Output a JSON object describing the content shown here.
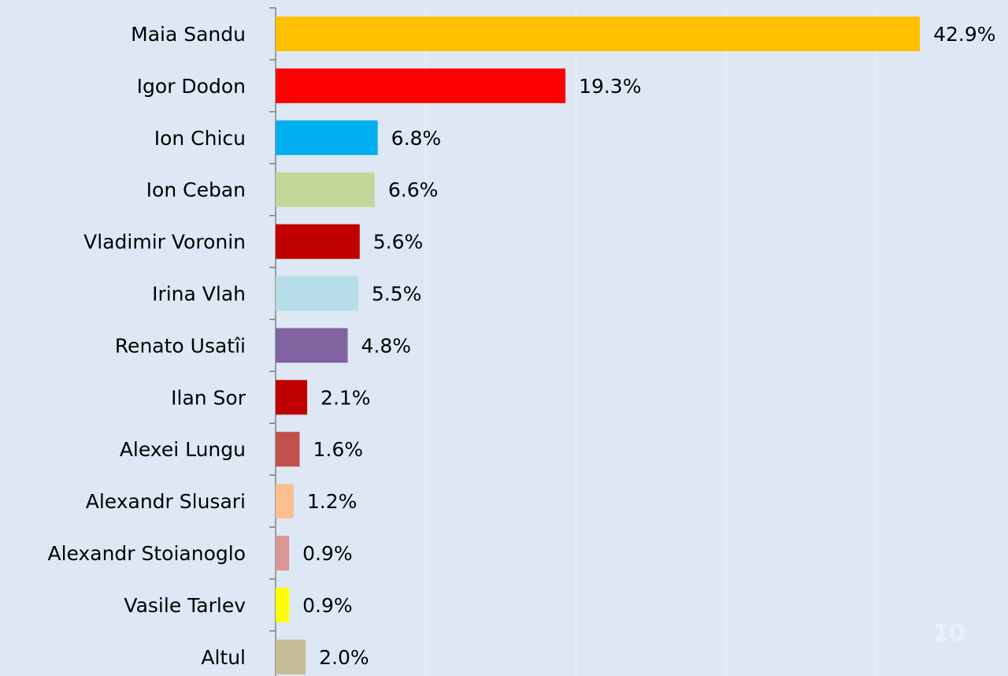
{
  "chart_data": {
    "type": "bar",
    "orientation": "horizontal",
    "categories": [
      "Maia Sandu",
      "Igor Dodon",
      "Ion Chicu",
      "Ion Ceban",
      "Vladimir Voronin",
      "Irina Vlah",
      "Renato Usatîi",
      "Ilan Sor",
      "Alexei Lungu",
      "Alexandr Slusari",
      "Alexandr Stoianoglo",
      "Vasile Tarlev",
      "Altul"
    ],
    "values": [
      42.9,
      19.3,
      6.8,
      6.6,
      5.6,
      5.5,
      4.8,
      2.1,
      1.6,
      1.2,
      0.9,
      0.9,
      2.0
    ],
    "value_labels": [
      "42.9%",
      "19.3%",
      "6.8%",
      "6.6%",
      "5.6%",
      "5.5%",
      "4.8%",
      "2.1%",
      "1.6%",
      "1.2%",
      "0.9%",
      "0.9%",
      "2.0%"
    ],
    "colors": [
      "#ffc000",
      "#ff0000",
      "#00b0f0",
      "#c4d79b",
      "#c00000",
      "#b7dde8",
      "#8064a2",
      "#c00000",
      "#c0504d",
      "#fac090",
      "#d99694",
      "#ffff00",
      "#c4bd97"
    ],
    "xlim": [
      0,
      48
    ],
    "xticks": [
      0,
      10,
      20,
      30,
      40
    ],
    "grid": true,
    "page_number": "10"
  }
}
